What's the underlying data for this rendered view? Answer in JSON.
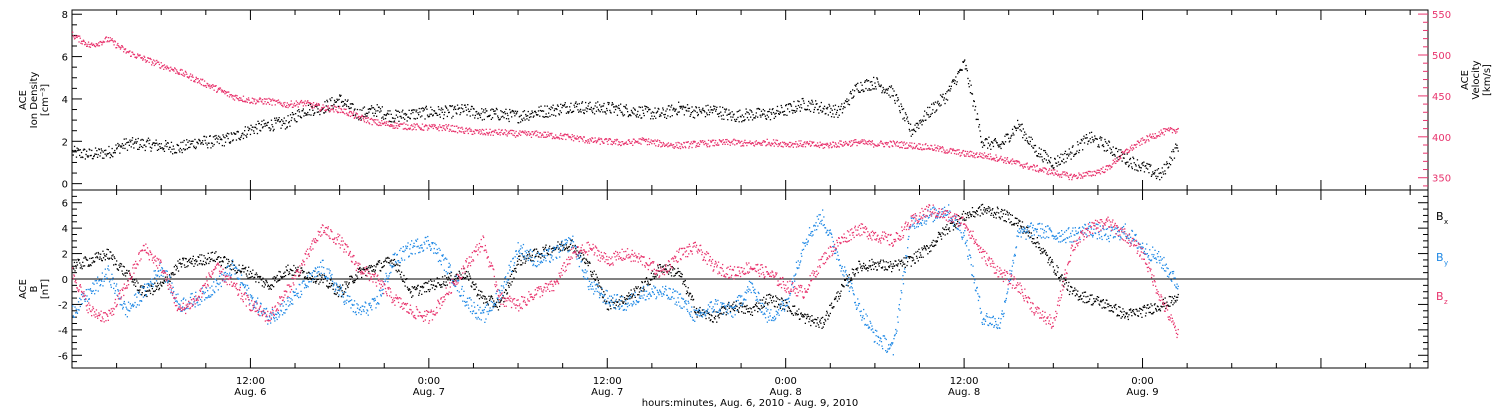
{
  "colors": {
    "black": "#000000",
    "velocity": "#e8336d",
    "by": "#1e88e5",
    "bz": "#e8336d"
  },
  "chart_data": [
    {
      "type": "scatter",
      "panel": "ion-density-velocity",
      "ylabel_lines": [
        "ACE",
        "Ion Density",
        "[cm⁻³]"
      ],
      "y2label_lines": [
        "ACE",
        "Velocity",
        "[km/s]"
      ],
      "ylim": [
        -0.3,
        8.2
      ],
      "y2lim": [
        335,
        555
      ],
      "yticks": [
        0,
        2,
        4,
        6,
        8
      ],
      "y2ticks": [
        350,
        400,
        450,
        500,
        550
      ],
      "xlim": [
        0,
        3.8
      ],
      "series": [
        {
          "axis": "left",
          "color": "#000000",
          "x": [
            0.0,
            0.05,
            0.1,
            0.15,
            0.2,
            0.25,
            0.3,
            0.35,
            0.4,
            0.45,
            0.5,
            0.55,
            0.6,
            0.65,
            0.7,
            0.75,
            0.8,
            0.85,
            0.9,
            0.95,
            1.0,
            1.05,
            1.1,
            1.15,
            1.2,
            1.25,
            1.3,
            1.35,
            1.4,
            1.45,
            1.5,
            1.55,
            1.6,
            1.65,
            1.7,
            1.75,
            1.8,
            1.85,
            1.9,
            1.95,
            2.0,
            2.05,
            2.1,
            2.15,
            2.2,
            2.25,
            2.3,
            2.35,
            2.4,
            2.45,
            2.5,
            2.55,
            2.6,
            2.65,
            2.7,
            2.75,
            2.8,
            2.85,
            2.9,
            2.95,
            3.0,
            3.05,
            3.1
          ],
          "y": [
            1.5,
            1.4,
            1.5,
            1.9,
            1.9,
            1.8,
            1.7,
            2.0,
            2.0,
            2.2,
            2.6,
            2.8,
            2.9,
            3.5,
            3.6,
            4.0,
            3.3,
            3.5,
            3.2,
            3.3,
            3.4,
            3.4,
            3.5,
            3.3,
            3.3,
            3.2,
            3.4,
            3.5,
            3.7,
            3.6,
            3.6,
            3.5,
            3.4,
            3.3,
            3.6,
            3.4,
            3.5,
            3.2,
            3.3,
            3.3,
            3.5,
            3.8,
            3.6,
            3.4,
            4.6,
            4.8,
            4.3,
            2.5,
            3.4,
            4.2,
            5.7,
            2.0,
            1.8,
            2.8,
            1.6,
            1.0,
            1.5,
            2.2,
            1.8,
            1.2,
            0.8,
            0.4,
            1.9
          ]
        },
        {
          "axis": "right",
          "color": "#e8336d",
          "x": [
            0.0,
            0.05,
            0.1,
            0.15,
            0.2,
            0.25,
            0.3,
            0.35,
            0.4,
            0.45,
            0.5,
            0.55,
            0.6,
            0.65,
            0.7,
            0.75,
            0.8,
            0.85,
            0.9,
            0.95,
            1.0,
            1.05,
            1.1,
            1.15,
            1.2,
            1.25,
            1.3,
            1.35,
            1.4,
            1.45,
            1.5,
            1.55,
            1.6,
            1.65,
            1.7,
            1.75,
            1.8,
            1.85,
            1.9,
            1.95,
            2.0,
            2.05,
            2.1,
            2.15,
            2.2,
            2.25,
            2.3,
            2.35,
            2.4,
            2.45,
            2.5,
            2.55,
            2.6,
            2.65,
            2.7,
            2.75,
            2.8,
            2.85,
            2.9,
            2.95,
            3.0,
            3.05,
            3.1
          ],
          "y": [
            525,
            512,
            520,
            505,
            496,
            488,
            480,
            470,
            460,
            450,
            445,
            444,
            440,
            442,
            436,
            434,
            425,
            418,
            415,
            413,
            412,
            412,
            408,
            406,
            406,
            404,
            404,
            402,
            400,
            396,
            395,
            393,
            396,
            392,
            390,
            392,
            393,
            394,
            392,
            394,
            392,
            392,
            390,
            392,
            394,
            392,
            392,
            390,
            388,
            384,
            380,
            378,
            374,
            368,
            362,
            357,
            352,
            355,
            362,
            382,
            396,
            406,
            410
          ]
        }
      ]
    },
    {
      "type": "scatter",
      "panel": "imf-components",
      "ylabel_lines": [
        "ACE",
        "B",
        "[nT]"
      ],
      "ylim": [
        -7,
        7
      ],
      "yticks": [
        -6,
        -4,
        -2,
        0,
        2,
        4,
        6
      ],
      "xlim": [
        0,
        3.8
      ],
      "legend": [
        {
          "label": "B",
          "sub": "x",
          "color": "#000000"
        },
        {
          "label": "B",
          "sub": "y",
          "color": "#1e88e5"
        },
        {
          "label": "B",
          "sub": "z",
          "color": "#e8336d"
        }
      ],
      "series": [
        {
          "name": "Bx",
          "color": "#000000",
          "x": [
            0.0,
            0.05,
            0.1,
            0.15,
            0.2,
            0.25,
            0.3,
            0.35,
            0.4,
            0.45,
            0.5,
            0.55,
            0.6,
            0.65,
            0.7,
            0.75,
            0.8,
            0.85,
            0.9,
            0.95,
            1.0,
            1.05,
            1.1,
            1.15,
            1.2,
            1.25,
            1.3,
            1.35,
            1.4,
            1.45,
            1.5,
            1.55,
            1.6,
            1.65,
            1.7,
            1.75,
            1.8,
            1.85,
            1.9,
            1.95,
            2.0,
            2.05,
            2.1,
            2.15,
            2.2,
            2.25,
            2.3,
            2.35,
            2.4,
            2.45,
            2.5,
            2.55,
            2.6,
            2.65,
            2.7,
            2.75,
            2.8,
            2.85,
            2.9,
            2.95,
            3.0,
            3.05,
            3.1
          ],
          "y": [
            1.0,
            1.5,
            2.0,
            0.5,
            -1.0,
            -0.5,
            1.2,
            1.5,
            1.8,
            1.0,
            0.5,
            -0.5,
            0.8,
            0.5,
            0.0,
            -1.0,
            0.5,
            1.0,
            1.5,
            -1.0,
            -0.5,
            0.0,
            0.5,
            -1.5,
            -2.0,
            1.5,
            2.0,
            2.5,
            2.8,
            1.0,
            -2.0,
            -1.5,
            -0.5,
            1.0,
            0.5,
            -2.5,
            -3.0,
            -2.0,
            -2.5,
            -1.5,
            -2.0,
            -3.0,
            -3.5,
            -1.0,
            1.0,
            1.2,
            1.0,
            1.5,
            2.5,
            4.0,
            5.0,
            5.5,
            5.2,
            4.5,
            3.0,
            1.0,
            -1.0,
            -1.5,
            -2.0,
            -2.8,
            -2.5,
            -2.0,
            -1.5
          ]
        },
        {
          "name": "By",
          "color": "#1e88e5",
          "x": [
            0.0,
            0.05,
            0.1,
            0.15,
            0.2,
            0.25,
            0.3,
            0.35,
            0.4,
            0.45,
            0.5,
            0.55,
            0.6,
            0.65,
            0.7,
            0.75,
            0.8,
            0.85,
            0.9,
            0.95,
            1.0,
            1.05,
            1.1,
            1.15,
            1.2,
            1.25,
            1.3,
            1.35,
            1.4,
            1.45,
            1.5,
            1.55,
            1.6,
            1.65,
            1.7,
            1.75,
            1.8,
            1.85,
            1.9,
            1.95,
            2.0,
            2.05,
            2.1,
            2.15,
            2.2,
            2.25,
            2.3,
            2.35,
            2.4,
            2.45,
            2.5,
            2.55,
            2.6,
            2.65,
            2.7,
            2.75,
            2.8,
            2.85,
            2.9,
            2.95,
            3.0,
            3.05,
            3.1
          ],
          "y": [
            -2.5,
            -1.0,
            0.5,
            -2.5,
            -1.0,
            1.0,
            -2.0,
            -1.5,
            -0.5,
            1.0,
            -1.5,
            -3.0,
            -2.0,
            -0.5,
            1.0,
            -1.0,
            -2.5,
            -2.0,
            1.5,
            2.5,
            3.0,
            1.0,
            -1.5,
            -3.0,
            -1.0,
            2.5,
            1.5,
            2.0,
            3.0,
            -0.5,
            -1.5,
            -2.0,
            -1.0,
            -1.0,
            -1.5,
            -3.0,
            -2.0,
            -2.5,
            -0.5,
            -3.0,
            -2.0,
            3.0,
            5.0,
            1.5,
            -2.0,
            -4.5,
            -5.5,
            4.5,
            5.0,
            5.5,
            3.5,
            -3.0,
            -3.5,
            3.5,
            4.0,
            3.5,
            3.5,
            4.0,
            3.5,
            3.8,
            2.5,
            1.5,
            -0.5
          ]
        },
        {
          "name": "Bz",
          "color": "#e8336d",
          "x": [
            0.0,
            0.05,
            0.1,
            0.15,
            0.2,
            0.25,
            0.3,
            0.35,
            0.4,
            0.45,
            0.5,
            0.55,
            0.6,
            0.65,
            0.7,
            0.75,
            0.8,
            0.85,
            0.9,
            0.95,
            1.0,
            1.05,
            1.1,
            1.15,
            1.2,
            1.25,
            1.3,
            1.35,
            1.4,
            1.45,
            1.5,
            1.55,
            1.6,
            1.65,
            1.7,
            1.75,
            1.8,
            1.85,
            1.9,
            1.95,
            2.0,
            2.05,
            2.1,
            2.15,
            2.2,
            2.25,
            2.3,
            2.35,
            2.4,
            2.45,
            2.5,
            2.55,
            2.6,
            2.65,
            2.7,
            2.75,
            2.8,
            2.85,
            2.9,
            2.95,
            3.0,
            3.05,
            3.1
          ],
          "y": [
            0.5,
            -2.5,
            -3.0,
            -0.5,
            2.5,
            1.0,
            -2.5,
            -1.5,
            1.0,
            -0.5,
            -2.0,
            -3.0,
            -1.0,
            1.5,
            4.0,
            3.0,
            1.0,
            0.0,
            -1.5,
            -2.5,
            -3.0,
            -1.0,
            1.0,
            3.0,
            -1.5,
            -2.0,
            -1.0,
            -0.5,
            2.0,
            2.5,
            1.5,
            2.0,
            1.5,
            0.5,
            2.0,
            2.5,
            1.0,
            0.5,
            1.0,
            0.5,
            -0.5,
            -1.0,
            1.5,
            3.0,
            4.0,
            3.5,
            3.0,
            4.5,
            5.5,
            5.0,
            4.5,
            2.0,
            0.5,
            -0.5,
            -2.5,
            -3.5,
            2.5,
            4.0,
            4.5,
            3.5,
            2.0,
            -1.5,
            -4.5
          ]
        }
      ]
    }
  ],
  "x_axis": {
    "ticks": [
      {
        "time": "12:00",
        "date": "Aug. 6"
      },
      {
        "time": "0:00",
        "date": "Aug. 7"
      },
      {
        "time": "12:00",
        "date": "Aug. 7"
      },
      {
        "time": "0:00",
        "date": "Aug. 8"
      },
      {
        "time": "12:00",
        "date": "Aug. 8"
      },
      {
        "time": "0:00",
        "date": "Aug. 9"
      }
    ],
    "title": "hours:minutes, Aug.  6, 2010 - Aug.  9, 2010"
  }
}
